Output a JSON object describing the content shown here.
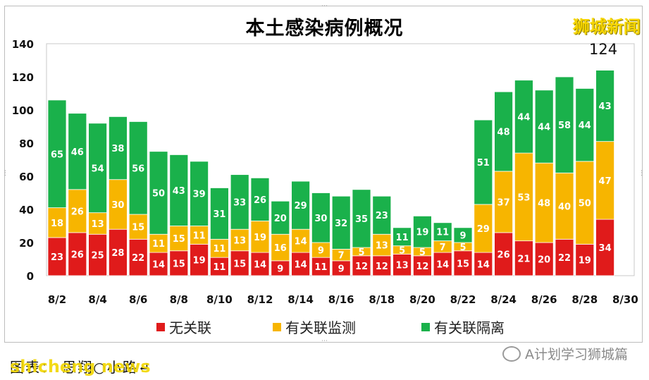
{
  "title": "本土感染病例概况",
  "watermark_top": "狮城新闻",
  "watermark_bottom": "shicheng news",
  "source_note": "图表： 思翔○小路↵",
  "wechat_label": "A计划学习狮城篇",
  "callout_total": "124",
  "colors": {
    "unlinked": "#e01b1b",
    "linked_surveillance": "#f7b500",
    "linked_quarantine": "#1ab14b"
  },
  "chart_data": {
    "type": "bar",
    "stacked": true,
    "title": "本土感染病例概况",
    "xlabel": "",
    "ylabel": "",
    "ylim": [
      0,
      140
    ],
    "yticks": [
      0,
      20,
      40,
      60,
      80,
      100,
      120,
      140
    ],
    "x_tick_labels": [
      "8/2",
      "8/4",
      "8/6",
      "8/8",
      "8/10",
      "8/12",
      "8/14",
      "8/16",
      "8/18",
      "8/20",
      "8/22",
      "8/24",
      "8/26",
      "8/28",
      "8/30"
    ],
    "categories": [
      "8/2",
      "8/3",
      "8/4",
      "8/5",
      "8/6",
      "8/7",
      "8/8",
      "8/9",
      "8/10",
      "8/11",
      "8/12",
      "8/13",
      "8/14",
      "8/15",
      "8/16",
      "8/17",
      "8/18",
      "8/19",
      "8/20",
      "8/21",
      "8/22",
      "8/23",
      "8/24",
      "8/25",
      "8/26",
      "8/27",
      "8/28",
      "8/29"
    ],
    "series": [
      {
        "name": "无关联",
        "color": "#e01b1b",
        "values": [
          23,
          26,
          25,
          28,
          22,
          14,
          15,
          19,
          11,
          15,
          14,
          9,
          14,
          11,
          9,
          12,
          12,
          13,
          12,
          14,
          15,
          14,
          26,
          21,
          20,
          22,
          19,
          34
        ]
      },
      {
        "name": "有关联监测",
        "color": "#f7b500",
        "values": [
          18,
          26,
          13,
          30,
          15,
          11,
          15,
          11,
          11,
          13,
          19,
          16,
          14,
          9,
          7,
          5,
          13,
          5,
          5,
          7,
          5,
          29,
          37,
          53,
          48,
          40,
          50,
          47
        ]
      },
      {
        "name": "有关联隔离",
        "color": "#1ab14b",
        "values": [
          65,
          46,
          54,
          38,
          56,
          50,
          43,
          39,
          31,
          33,
          26,
          20,
          29,
          30,
          32,
          35,
          23,
          11,
          19,
          11,
          9,
          51,
          48,
          44,
          44,
          58,
          44,
          43
        ]
      }
    ],
    "legend_position": "bottom",
    "grid": false
  }
}
